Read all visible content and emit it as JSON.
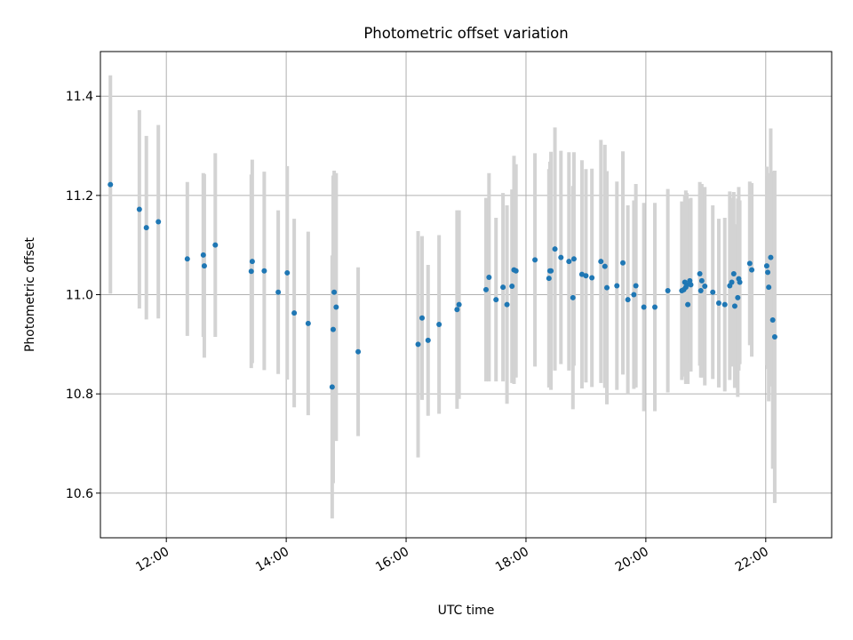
{
  "chart_data": {
    "type": "scatter",
    "title": "Photometric offset variation",
    "xlabel": "UTC time",
    "ylabel": "Photometric offset",
    "x_tick_labels": [
      "12:00",
      "14:00",
      "16:00",
      "18:00",
      "20:00",
      "22:00"
    ],
    "y_tick_labels": [
      "10.6",
      "10.8",
      "11.0",
      "11.2",
      "11.4"
    ],
    "xlim": [
      "10:54",
      "23:06"
    ],
    "ylim": [
      10.51,
      11.49
    ],
    "grid": true,
    "legend": "none",
    "colors": {
      "points": "#1f77b4",
      "errorbars": "#d3d3d3",
      "grid": "#b0b0b0"
    },
    "series": [
      {
        "x": [
          "11:04",
          "11:33",
          "11:40",
          "11:52",
          "12:21",
          "12:37",
          "12:38",
          "12:49",
          "13:25",
          "13:26",
          "13:38",
          "13:52",
          "14:01",
          "14:08",
          "14:22",
          "14:46",
          "14:47",
          "14:48",
          "14:50",
          "15:12",
          "16:12",
          "16:16",
          "16:22",
          "16:33",
          "16:51",
          "16:53",
          "17:20",
          "17:23",
          "17:30",
          "17:37",
          "17:41",
          "17:46",
          "17:48",
          "17:50",
          "18:09",
          "18:23",
          "18:24",
          "18:25",
          "18:29",
          "18:35",
          "18:43",
          "18:47",
          "18:48",
          "18:56",
          "19:00",
          "19:06",
          "19:15",
          "19:19",
          "19:21",
          "19:31",
          "19:37",
          "19:42",
          "19:48",
          "19:50",
          "19:58",
          "20:09",
          "20:22",
          "20:36",
          "20:38",
          "20:39",
          "20:40",
          "20:41",
          "20:42",
          "20:44",
          "20:45",
          "20:54",
          "20:55",
          "20:56",
          "20:59",
          "21:07",
          "21:13",
          "21:19",
          "21:24",
          "21:26",
          "21:28",
          "21:29",
          "21:32",
          "21:33",
          "21:34",
          "21:44",
          "21:46",
          "22:01",
          "22:02",
          "22:03",
          "22:05",
          "22:07",
          "22:09"
        ],
        "y": [
          11.222,
          11.172,
          11.135,
          11.147,
          11.072,
          11.08,
          11.058,
          11.1,
          11.047,
          11.067,
          11.048,
          11.005,
          11.044,
          10.963,
          10.942,
          10.814,
          10.93,
          11.005,
          10.975,
          10.885,
          10.9,
          10.953,
          10.908,
          10.94,
          10.97,
          10.98,
          11.01,
          11.035,
          10.99,
          11.015,
          10.98,
          11.017,
          11.05,
          11.048,
          11.07,
          11.033,
          11.048,
          11.048,
          11.092,
          11.075,
          11.067,
          10.994,
          11.072,
          11.041,
          11.038,
          11.034,
          11.067,
          11.057,
          11.014,
          11.018,
          11.064,
          10.99,
          11.0,
          11.018,
          10.975,
          10.975,
          11.008,
          11.008,
          11.01,
          11.025,
          11.015,
          11.02,
          10.98,
          11.028,
          11.02,
          11.042,
          11.008,
          11.028,
          11.017,
          11.005,
          10.983,
          10.98,
          11.018,
          11.025,
          11.042,
          10.977,
          10.994,
          11.032,
          11.025,
          11.063,
          11.05,
          11.058,
          11.045,
          11.015,
          11.075,
          10.949,
          10.915
        ],
        "err": [
          0.22,
          0.2,
          0.185,
          0.195,
          0.155,
          0.165,
          0.185,
          0.185,
          0.195,
          0.205,
          0.2,
          0.165,
          0.215,
          0.19,
          0.185,
          0.265,
          0.31,
          0.245,
          0.27,
          0.17,
          0.228,
          0.165,
          0.152,
          0.18,
          0.2,
          0.19,
          0.185,
          0.21,
          0.165,
          0.19,
          0.2,
          0.195,
          0.23,
          0.215,
          0.215,
          0.22,
          0.22,
          0.24,
          0.245,
          0.215,
          0.22,
          0.225,
          0.215,
          0.23,
          0.215,
          0.22,
          0.245,
          0.245,
          0.235,
          0.21,
          0.225,
          0.19,
          0.19,
          0.205,
          0.21,
          0.21,
          0.205,
          0.18,
          0.175,
          0.175,
          0.195,
          0.185,
          0.16,
          0.165,
          0.175,
          0.185,
          0.175,
          0.195,
          0.2,
          0.175,
          0.17,
          0.175,
          0.19,
          0.17,
          0.165,
          0.165,
          0.2,
          0.185,
          0.165,
          0.165,
          0.175,
          0.2,
          0.195,
          0.23,
          0.26,
          0.3,
          0.335
        ]
      }
    ]
  }
}
